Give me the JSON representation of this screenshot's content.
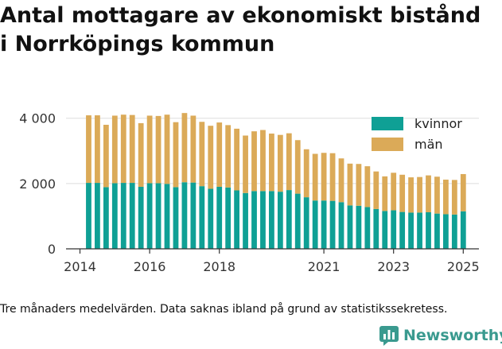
{
  "title_lines": [
    "Antal mottagare av ekonomiskt bistånd",
    "i Norrköpings kommun"
  ],
  "footnote": "Tre månaders medelvärden. Data saknas ibland på grund av statistikssekretess.",
  "brand": "Newsworthy",
  "colors": {
    "kvinnor": "#0fa095",
    "man": "#dbaa58",
    "grid": "#dddddd",
    "axis": "#333333",
    "brand": "#3a9a8f"
  },
  "chart_data": {
    "type": "bar",
    "stacked": true,
    "xlim": [
      2013.6,
      2025.45
    ],
    "ylim": [
      0,
      4700
    ],
    "x_ticks": [
      {
        "value": 2014,
        "label": "2014"
      },
      {
        "value": 2016,
        "label": "2016"
      },
      {
        "value": 2018,
        "label": "2018"
      },
      {
        "value": 2021,
        "label": "2021"
      },
      {
        "value": 2023,
        "label": "2023"
      },
      {
        "value": 2025,
        "label": "2025"
      }
    ],
    "y_ticks": [
      {
        "value": 0,
        "label": "0"
      },
      {
        "value": 2000,
        "label": "2 000"
      },
      {
        "value": 4000,
        "label": "4 000"
      }
    ],
    "grid": true,
    "legend_position": "top-right",
    "x": [
      2014.25,
      2014.5,
      2014.75,
      2015.0,
      2015.25,
      2015.5,
      2015.75,
      2016.0,
      2016.25,
      2016.5,
      2016.75,
      2017.0,
      2017.25,
      2017.5,
      2017.75,
      2018.0,
      2018.25,
      2018.5,
      2018.75,
      2019.0,
      2019.25,
      2019.5,
      2019.75,
      2020.0,
      2020.25,
      2020.5,
      2020.75,
      2021.0,
      2021.25,
      2021.5,
      2021.75,
      2022.0,
      2022.25,
      2022.5,
      2022.75,
      2023.0,
      2023.25,
      2023.5,
      2023.75,
      2024.0,
      2024.25,
      2024.5,
      2024.75,
      2025.0
    ],
    "series": [
      {
        "name": "kvinnor",
        "values": [
          2020,
          2020,
          1890,
          2010,
          2020,
          2020,
          1900,
          2010,
          2010,
          1990,
          1890,
          2040,
          2030,
          1920,
          1840,
          1900,
          1880,
          1790,
          1710,
          1770,
          1770,
          1770,
          1750,
          1800,
          1690,
          1580,
          1480,
          1480,
          1470,
          1430,
          1330,
          1320,
          1280,
          1220,
          1160,
          1180,
          1130,
          1110,
          1110,
          1120,
          1080,
          1060,
          1050,
          1150
        ]
      },
      {
        "name": "män",
        "values": [
          2070,
          2070,
          1910,
          2070,
          2090,
          2080,
          1950,
          2070,
          2060,
          2120,
          1990,
          2120,
          2050,
          1970,
          1930,
          1970,
          1910,
          1890,
          1760,
          1830,
          1870,
          1760,
          1740,
          1740,
          1640,
          1470,
          1430,
          1460,
          1460,
          1340,
          1280,
          1280,
          1250,
          1150,
          1060,
          1150,
          1140,
          1080,
          1090,
          1130,
          1130,
          1060,
          1060,
          1140
        ]
      }
    ]
  }
}
